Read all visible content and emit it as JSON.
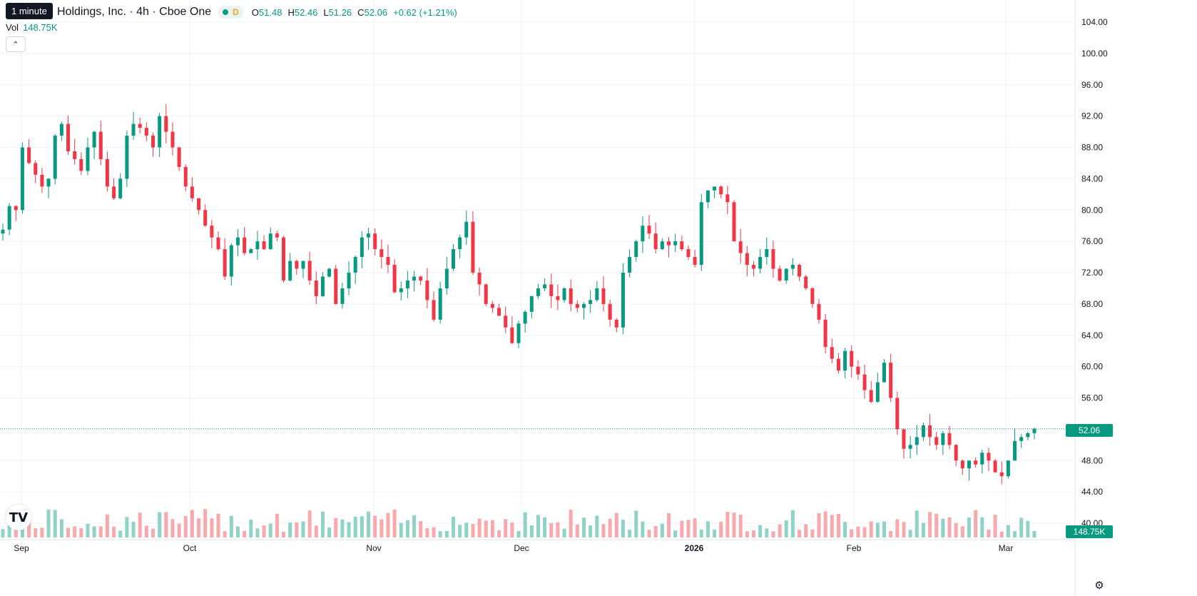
{
  "tooltip": "1 minute",
  "header": {
    "title": "Holdings, Inc. · 4h · Cboe One",
    "market_status_letter": "D",
    "ohlc": {
      "o_label": "O",
      "o": "51.48",
      "h_label": "H",
      "h": "52.46",
      "l_label": "L",
      "l": "51.26",
      "c_label": "C",
      "c": "52.06",
      "change": "+0.62 (+1.21%)"
    }
  },
  "volume": {
    "label": "Vol",
    "value": "148.75K"
  },
  "price_tag": {
    "last": "52.06",
    "volume": "148.75K"
  },
  "colors": {
    "up": "#089981",
    "down": "#f23645",
    "up_vol": "#8fd3c6",
    "down_vol": "#f7a9ad",
    "grid": "#f0f3fa"
  },
  "icons": {
    "collapse": "chevron-up-icon",
    "logo": "tradingview-logo-icon",
    "settings": "settings-icon"
  },
  "chart_data": {
    "type": "candlestick",
    "interval": "4h",
    "y_ticks": [
      "104.00",
      "100.00",
      "96.00",
      "92.00",
      "88.00",
      "84.00",
      "80.00",
      "76.00",
      "72.00",
      "68.00",
      "64.00",
      "60.00",
      "56.00",
      "52.00",
      "48.00",
      "44.00",
      "40.00"
    ],
    "ylim": [
      40,
      104
    ],
    "x_labels": [
      "Sep",
      "Oct",
      "Nov",
      "Dec",
      "2026",
      "Feb",
      "Mar"
    ],
    "x_label_bold": "2026",
    "last_price": 52.06,
    "candles_close": [
      77.5,
      80.5,
      80.0,
      88.0,
      86.0,
      84.5,
      83.0,
      84.0,
      89.5,
      91.0,
      87.5,
      86.5,
      85.0,
      88.0,
      90.0,
      86.5,
      83.0,
      81.5,
      84.0,
      89.5,
      91.0,
      90.5,
      89.5,
      88.0,
      92.0,
      90.0,
      88.0,
      85.5,
      83.0,
      81.5,
      80.0,
      78.0,
      76.5,
      75.0,
      71.5,
      75.5,
      76.5,
      74.5,
      75.0,
      76.0,
      75.0,
      77.0,
      76.5,
      71.0,
      73.5,
      72.5,
      73.5,
      71.0,
      69.0,
      71.5,
      72.5,
      68.0,
      70.0,
      72.0,
      74.0,
      76.5,
      77.0,
      75.0,
      74.0,
      73.0,
      69.5,
      70.0,
      71.0,
      71.5,
      71.0,
      68.5,
      66.0,
      70.0,
      72.5,
      75.0,
      76.5,
      78.5,
      72.0,
      70.5,
      68.0,
      67.5,
      66.5,
      65.0,
      63.0,
      65.5,
      67.0,
      69.0,
      70.0,
      70.5,
      69.0,
      68.5,
      70.0,
      68.0,
      67.5,
      68.0,
      68.5,
      70.0,
      68.0,
      66.0,
      65.0,
      72.0,
      74.0,
      76.0,
      78.0,
      77.0,
      75.0,
      76.0,
      75.5,
      76.0,
      75.0,
      74.0,
      73.0,
      81.0,
      82.5,
      83.0,
      82.0,
      81.0,
      76.0,
      74.5,
      73.0,
      72.5,
      74.0,
      75.0,
      72.5,
      71.0,
      72.5,
      73.0,
      71.5,
      70.0,
      68.0,
      66.0,
      62.5,
      61.0,
      59.5,
      62.0,
      60.0,
      59.0,
      57.0,
      55.5,
      58.0,
      60.5,
      56.0,
      52.0,
      49.5,
      50.0,
      51.0,
      52.5,
      51.0,
      50.0,
      51.5,
      50.0,
      48.0,
      47.0,
      48.0,
      47.5,
      49.0,
      48.0,
      46.5,
      46.0,
      48.0,
      50.5,
      51.0,
      51.5,
      52.06
    ],
    "volume_scale_max": "K"
  }
}
